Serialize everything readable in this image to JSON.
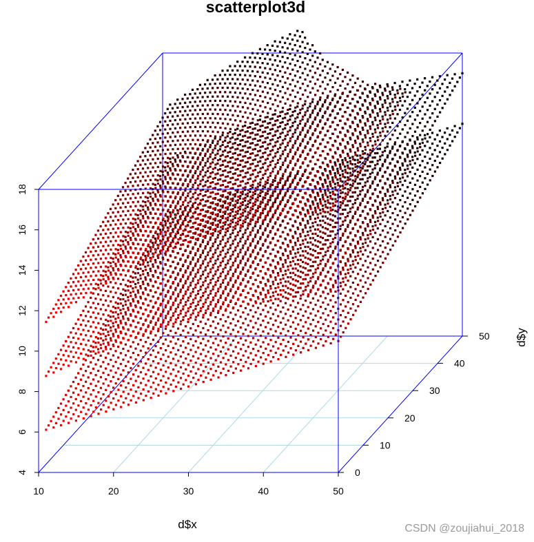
{
  "chart_data": {
    "type": "scatter3d",
    "title": "scatterplot3d",
    "xlabel": "d$x",
    "ylabel": "d$y",
    "zlabel": "",
    "xlim": [
      10,
      50
    ],
    "ylim": [
      0,
      50
    ],
    "zlim": [
      4,
      18
    ],
    "x_ticks": [
      "10",
      "20",
      "30",
      "40",
      "50"
    ],
    "y_ticks": [
      "0",
      "10",
      "20",
      "30",
      "40",
      "50"
    ],
    "z_ticks": [
      "4",
      "6",
      "8",
      "10",
      "12",
      "14",
      "16",
      "18"
    ],
    "box": true,
    "grid": true,
    "point_color_low": "#ff0000",
    "point_color_high": "#000000",
    "surfaces": [
      {
        "z_at_x_min": 6.0,
        "z_at_x_max": 10.5,
        "z_slope_y": 0.08,
        "curvature": 0.0
      },
      {
        "z_at_x_min": 8.6,
        "z_at_x_max": 13.0,
        "z_slope_y": 0.08,
        "curvature": 0.6
      },
      {
        "z_at_x_min": 11.2,
        "z_at_x_max": 17.0,
        "z_slope_y": 0.08,
        "curvature": 1.0
      }
    ]
  },
  "watermark": "CSDN @zoujiahui_2018",
  "colors": {
    "box": "#0000ff",
    "grid": "#add8e6"
  }
}
